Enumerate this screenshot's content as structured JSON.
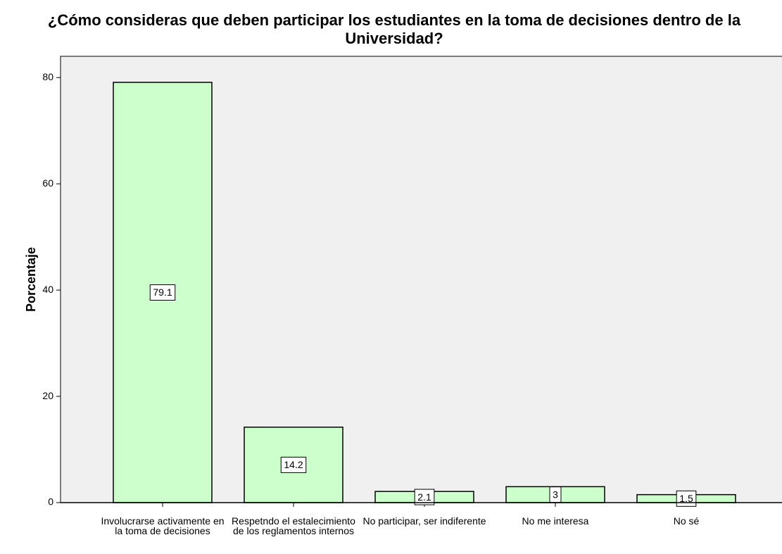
{
  "chart_data": {
    "type": "bar",
    "title": "¿Cómo consideras que deben participar los estudiantes en la toma de decisiones dentro de la Universidad?",
    "ylabel": "Porcentaje",
    "categories": [
      "Involucrarse activamente en la toma de decisiones",
      "Respetndo el estalecimiento de los reglamentos internos",
      "No participar, ser indiferente",
      "No me interesa",
      "No sé"
    ],
    "values": [
      79.1,
      14.2,
      2.1,
      3,
      1.5
    ],
    "color": "#ccffcc",
    "ylim": [
      0,
      84
    ],
    "yticks": [
      0,
      20,
      40,
      60,
      80
    ],
    "grid": false
  }
}
